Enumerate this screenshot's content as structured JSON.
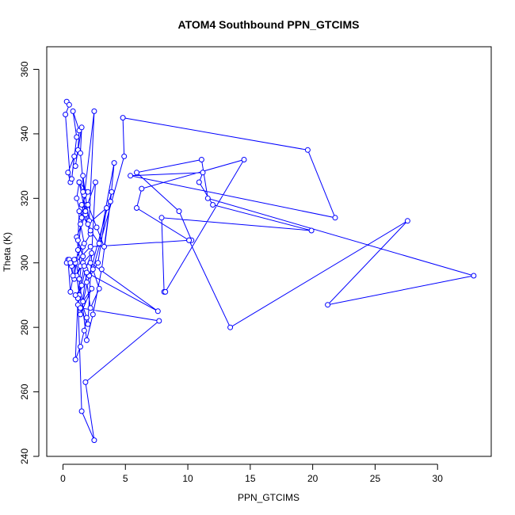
{
  "chart_data": {
    "type": "line",
    "title": "ATOM4 Southbound PPN_GTCIMS",
    "xlabel": "PPN_GTCIMS",
    "ylabel": "Theta (K)",
    "xlim": [
      -1.3,
      34.3
    ],
    "ylim": [
      240,
      367
    ],
    "xticks": [
      0,
      5,
      10,
      15,
      20,
      25,
      30
    ],
    "yticks": [
      240,
      260,
      280,
      300,
      320,
      340,
      360
    ],
    "grid": false,
    "markers": "open-circle",
    "color": "#0000ff",
    "series": [
      {
        "x": [
          0.3,
          0.5,
          0.2,
          0.6,
          0.4,
          0.9,
          0.7,
          1.1,
          0.8,
          1.3,
          1.2,
          1.0,
          1.5,
          1.4,
          1.7,
          1.6,
          1.9,
          2.1,
          2.5,
          1.2,
          0.9,
          1.4,
          1.1,
          1.8,
          1.3,
          2.0,
          1.5,
          2.2,
          1.6,
          1.2,
          1.0,
          1.4,
          1.7,
          1.9,
          1.3,
          1.1,
          1.6,
          2.3,
          1.8,
          1.5,
          1.2,
          2.0,
          2.6,
          1.4,
          1.7,
          1.0,
          1.3,
          1.9,
          2.4,
          3.1,
          3.8,
          4.1,
          2.9,
          2.2,
          1.8,
          1.6,
          1.3,
          1.1,
          1.5,
          2.0,
          2.7,
          3.3,
          3.9,
          2.1,
          1.6,
          2.3,
          1.4,
          1.9,
          7.6,
          2.2,
          1.7,
          1.2,
          1.5,
          2.5,
          1.8,
          7.7,
          1.4,
          1.0,
          1.9,
          2.8,
          3.5,
          2.0,
          1.3,
          1.2,
          1.6,
          2.2,
          2.9,
          2.4,
          4.9,
          4.8,
          19.6,
          21.8,
          5.4,
          11.2,
          10.9,
          12.0,
          19.9,
          7.9,
          8.1,
          8.2,
          14.5,
          6.3,
          5.9,
          10.1,
          10.3,
          9.3,
          5.9,
          11.1,
          11.6,
          32.9,
          21.2,
          27.6,
          13.4,
          10.1,
          2.2,
          1.0,
          0.6,
          0.4,
          0.3,
          0.5,
          0.8,
          0.7,
          0.9,
          0.6
        ],
        "y": [
          350,
          349,
          346,
          325,
          328,
          333,
          326,
          339,
          347,
          341,
          335,
          330,
          342,
          334,
          321,
          327,
          318,
          313,
          347,
          304,
          295,
          299,
          308,
          315,
          325,
          322,
          318,
          309,
          305,
          289,
          270,
          274,
          279,
          283,
          290,
          296,
          300,
          303,
          298,
          293,
          287,
          281,
          325,
          312,
          306,
          301,
          295,
          276,
          284,
          298,
          319,
          331,
          306,
          310,
          316,
          322,
          325,
          320,
          314,
          318,
          311,
          305,
          322,
          296,
          288,
          292,
          284,
          297,
          285,
          300,
          299,
          289,
          254,
          245,
          263,
          282,
          286,
          290,
          294,
          300,
          317,
          312,
          316,
          307,
          302,
          286,
          292,
          298,
          333,
          345,
          335,
          314,
          327,
          328,
          325,
          318,
          310,
          314,
          291,
          291,
          332,
          323,
          317,
          307,
          307,
          316,
          328,
          332,
          320,
          296,
          287,
          313,
          280,
          307,
          305,
          300,
          291,
          301,
          300,
          301,
          296,
          299,
          301,
          300
        ]
      }
    ]
  }
}
